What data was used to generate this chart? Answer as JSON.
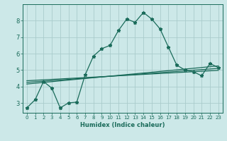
{
  "xlabel": "Humidex (Indice chaleur)",
  "bg_color": "#cce8e8",
  "grid_color": "#aacccc",
  "line_color": "#1a6b5a",
  "xlim": [
    -0.5,
    23.5
  ],
  "ylim": [
    2.4,
    9.0
  ],
  "yticks": [
    3,
    4,
    5,
    6,
    7,
    8
  ],
  "xticks": [
    0,
    1,
    2,
    3,
    4,
    5,
    6,
    7,
    8,
    9,
    10,
    11,
    12,
    13,
    14,
    15,
    16,
    17,
    18,
    19,
    20,
    21,
    22,
    23
  ],
  "main_line_x": [
    0,
    1,
    2,
    3,
    4,
    5,
    6,
    7,
    8,
    9,
    10,
    11,
    12,
    13,
    14,
    15,
    16,
    17,
    18,
    19,
    20,
    21,
    22,
    23
  ],
  "main_line_y": [
    2.7,
    3.2,
    4.3,
    3.9,
    2.7,
    3.0,
    3.05,
    4.7,
    5.85,
    6.3,
    6.5,
    7.4,
    8.1,
    7.9,
    8.5,
    8.1,
    7.5,
    6.4,
    5.3,
    5.0,
    4.9,
    4.65,
    5.4,
    5.15
  ],
  "reg_line1_x": [
    0,
    23
  ],
  "reg_line1_y": [
    4.15,
    5.25
  ],
  "reg_line2_x": [
    0,
    23
  ],
  "reg_line2_y": [
    4.25,
    5.1
  ],
  "reg_line3_x": [
    0,
    23
  ],
  "reg_line3_y": [
    4.35,
    4.98
  ]
}
